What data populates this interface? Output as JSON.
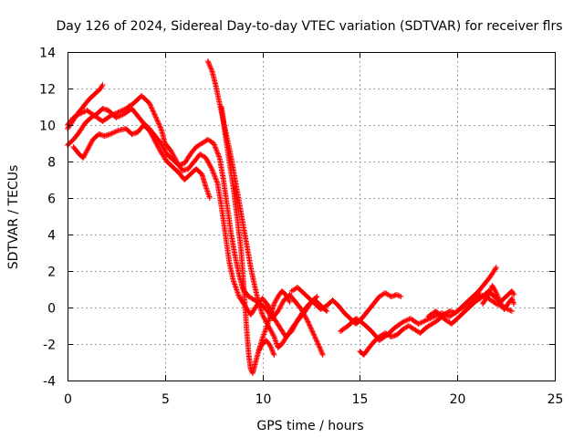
{
  "chart_data": {
    "type": "scatter",
    "title": "Day 126 of 2024, Sidereal Day-to-day VTEC variation (SDTVAR) for receiver flrs",
    "xlabel": "GPS time / hours",
    "ylabel": "SDTVAR / TECUs",
    "xlim": [
      0,
      25
    ],
    "ylim": [
      -4,
      14
    ],
    "xticks": [
      0,
      5,
      10,
      15,
      20,
      25
    ],
    "yticks": [
      -4,
      -2,
      0,
      2,
      4,
      6,
      8,
      10,
      12,
      14
    ],
    "grid": true,
    "legend": "none",
    "marker_color": "#ff0000",
    "marker": "plus",
    "series": [
      {
        "values": [
          [
            0,
            10.0
          ],
          [
            0.3,
            10.4
          ],
          [
            0.6,
            10.6
          ],
          [
            1.0,
            10.8
          ],
          [
            1.4,
            10.5
          ],
          [
            1.8,
            10.2
          ],
          [
            2.2,
            10.5
          ],
          [
            2.6,
            10.7
          ],
          [
            3.0,
            10.9
          ],
          [
            3.4,
            11.2
          ],
          [
            3.8,
            11.6
          ],
          [
            4.2,
            11.2
          ],
          [
            4.5,
            10.5
          ],
          [
            4.8,
            9.8
          ],
          [
            5.0,
            9.0
          ],
          [
            5.3,
            8.6
          ],
          [
            5.6,
            8.0
          ],
          [
            5.9,
            7.5
          ],
          [
            6.2,
            7.6
          ],
          [
            6.5,
            8.0
          ],
          [
            6.8,
            8.4
          ],
          [
            7.1,
            8.2
          ],
          [
            7.4,
            7.6
          ],
          [
            7.7,
            6.8
          ],
          [
            7.9,
            5.5
          ],
          [
            8.1,
            4.0
          ],
          [
            8.3,
            2.5
          ],
          [
            8.5,
            1.5
          ],
          [
            8.8,
            0.6
          ],
          [
            9.1,
            0.1
          ],
          [
            9.4,
            -0.4
          ],
          [
            9.7,
            0.1
          ],
          [
            10.0,
            0.5
          ],
          [
            10.3,
            0.1
          ],
          [
            10.6,
            -0.6
          ],
          [
            10.9,
            -1.1
          ],
          [
            11.2,
            -1.6
          ],
          [
            11.5,
            -1.3
          ],
          [
            11.8,
            -0.7
          ],
          [
            12.1,
            -0.2
          ],
          [
            12.4,
            0.2
          ],
          [
            12.7,
            0.4
          ],
          [
            13.0,
            0.1
          ],
          [
            13.3,
            -0.2
          ]
        ]
      },
      {
        "values": [
          [
            0,
            8.9
          ],
          [
            0.3,
            9.2
          ],
          [
            0.6,
            9.6
          ],
          [
            0.9,
            10.1
          ],
          [
            1.2,
            10.4
          ],
          [
            1.5,
            10.6
          ],
          [
            1.8,
            10.9
          ],
          [
            2.1,
            10.8
          ],
          [
            2.5,
            10.4
          ],
          [
            2.9,
            10.6
          ],
          [
            3.3,
            10.9
          ],
          [
            3.6,
            10.5
          ],
          [
            3.9,
            10.1
          ],
          [
            4.2,
            9.8
          ],
          [
            4.5,
            9.4
          ],
          [
            4.8,
            9.0
          ],
          [
            5.1,
            8.4
          ],
          [
            5.4,
            8.1
          ],
          [
            5.7,
            7.8
          ],
          [
            6.0,
            7.9
          ],
          [
            6.3,
            8.4
          ],
          [
            6.6,
            8.8
          ],
          [
            6.9,
            9.0
          ],
          [
            7.2,
            9.2
          ],
          [
            7.5,
            9.0
          ],
          [
            7.8,
            8.2
          ],
          [
            8.0,
            7.0
          ],
          [
            8.2,
            5.5
          ],
          [
            8.4,
            4.0
          ],
          [
            8.6,
            2.8
          ],
          [
            8.8,
            1.8
          ],
          [
            9.0,
            1.0
          ],
          [
            9.3,
            0.6
          ],
          [
            9.6,
            0.4
          ],
          [
            9.9,
            0.2
          ],
          [
            10.2,
            -0.1
          ],
          [
            10.5,
            -0.6
          ],
          [
            10.8,
            -0.2
          ],
          [
            11.1,
            0.4
          ],
          [
            11.4,
            0.7
          ],
          [
            11.7,
            0.3
          ],
          [
            12.0,
            -0.1
          ],
          [
            12.3,
            -0.7
          ],
          [
            12.6,
            -1.4
          ],
          [
            12.9,
            -2.1
          ],
          [
            13.1,
            -2.6
          ]
        ]
      },
      {
        "values": [
          [
            0,
            9.8
          ],
          [
            0.2,
            10.1
          ],
          [
            0.5,
            10.6
          ],
          [
            0.8,
            11.0
          ],
          [
            1.1,
            11.4
          ],
          [
            1.4,
            11.7
          ],
          [
            1.7,
            12.0
          ],
          [
            1.8,
            12.2
          ]
        ]
      },
      {
        "values": [
          [
            0.3,
            8.8
          ],
          [
            0.6,
            8.4
          ],
          [
            0.8,
            8.2
          ],
          [
            1.0,
            8.6
          ],
          [
            1.3,
            9.2
          ],
          [
            1.6,
            9.5
          ],
          [
            1.9,
            9.4
          ],
          [
            2.2,
            9.5
          ],
          [
            2.6,
            9.7
          ],
          [
            3.0,
            9.8
          ],
          [
            3.3,
            9.5
          ],
          [
            3.6,
            9.6
          ],
          [
            3.9,
            10.0
          ],
          [
            4.2,
            9.7
          ],
          [
            4.5,
            9.1
          ],
          [
            4.8,
            8.5
          ],
          [
            5.1,
            8.0
          ],
          [
            5.4,
            7.7
          ],
          [
            5.7,
            7.4
          ],
          [
            6.0,
            7.0
          ],
          [
            6.3,
            7.3
          ],
          [
            6.6,
            7.6
          ],
          [
            6.9,
            7.3
          ],
          [
            7.1,
            6.6
          ],
          [
            7.3,
            6.0
          ]
        ]
      },
      {
        "values": [
          [
            7.2,
            13.5
          ],
          [
            7.4,
            13.0
          ],
          [
            7.6,
            12.2
          ],
          [
            7.8,
            11.2
          ],
          [
            8.0,
            10.2
          ],
          [
            8.2,
            9.2
          ],
          [
            8.4,
            8.2
          ],
          [
            8.6,
            7.0
          ],
          [
            8.8,
            5.8
          ],
          [
            9.0,
            4.6
          ],
          [
            9.2,
            3.4
          ],
          [
            9.4,
            2.2
          ],
          [
            9.6,
            1.2
          ],
          [
            9.8,
            0.3
          ],
          [
            10.0,
            -0.4
          ],
          [
            10.3,
            -1.0
          ],
          [
            10.6,
            -1.6
          ],
          [
            10.8,
            -2.2
          ],
          [
            11.0,
            -2.0
          ],
          [
            11.3,
            -1.5
          ],
          [
            11.6,
            -1.0
          ],
          [
            11.9,
            -0.6
          ],
          [
            12.2,
            -0.2
          ],
          [
            12.5,
            0.3
          ],
          [
            12.8,
            0.6
          ]
        ]
      },
      {
        "values": [
          [
            7.9,
            11.0
          ],
          [
            8.1,
            9.4
          ],
          [
            8.3,
            8.0
          ],
          [
            8.5,
            6.6
          ],
          [
            8.7,
            5.0
          ],
          [
            8.9,
            3.2
          ],
          [
            9.0,
            1.8
          ],
          [
            9.1,
            0.2
          ],
          [
            9.2,
            -1.3
          ],
          [
            9.3,
            -2.6
          ],
          [
            9.4,
            -3.4
          ],
          [
            9.5,
            -3.6
          ],
          [
            9.6,
            -3.2
          ],
          [
            9.8,
            -2.4
          ],
          [
            10.0,
            -1.7
          ],
          [
            10.2,
            -1.1
          ],
          [
            10.4,
            -0.5
          ],
          [
            10.6,
            0.2
          ],
          [
            10.8,
            0.6
          ],
          [
            11.0,
            0.9
          ],
          [
            11.2,
            0.7
          ],
          [
            11.4,
            0.3
          ]
        ]
      },
      {
        "values": [
          [
            9.8,
            -2.4
          ],
          [
            10.0,
            -2.0
          ],
          [
            10.2,
            -1.8
          ],
          [
            10.4,
            -2.1
          ],
          [
            10.6,
            -2.6
          ]
        ]
      },
      {
        "values": [
          [
            11.5,
            0.9
          ],
          [
            11.8,
            1.1
          ],
          [
            12.1,
            0.8
          ],
          [
            12.4,
            0.5
          ],
          [
            12.7,
            0.2
          ],
          [
            13.0,
            -0.1
          ],
          [
            13.3,
            0.1
          ],
          [
            13.6,
            0.4
          ],
          [
            13.9,
            0.1
          ],
          [
            14.2,
            -0.3
          ],
          [
            14.5,
            -0.6
          ],
          [
            14.8,
            -0.9
          ],
          [
            15.1,
            -0.6
          ],
          [
            15.4,
            -0.2
          ],
          [
            15.7,
            0.2
          ],
          [
            16.0,
            0.6
          ],
          [
            16.3,
            0.8
          ],
          [
            16.6,
            0.6
          ],
          [
            16.9,
            0.7
          ],
          [
            17.1,
            0.6
          ]
        ]
      },
      {
        "values": [
          [
            15.0,
            -2.4
          ],
          [
            15.2,
            -2.6
          ],
          [
            15.4,
            -2.3
          ],
          [
            15.7,
            -1.9
          ],
          [
            16.0,
            -1.6
          ],
          [
            16.3,
            -1.4
          ],
          [
            16.6,
            -1.6
          ],
          [
            16.9,
            -1.5
          ],
          [
            17.2,
            -1.2
          ],
          [
            17.5,
            -1.0
          ],
          [
            17.8,
            -1.2
          ],
          [
            18.1,
            -1.4
          ],
          [
            18.4,
            -1.1
          ],
          [
            18.7,
            -0.9
          ],
          [
            19.0,
            -0.7
          ],
          [
            19.3,
            -0.4
          ],
          [
            19.6,
            -0.2
          ],
          [
            19.9,
            -0.3
          ],
          [
            20.2,
            0.0
          ],
          [
            20.5,
            0.3
          ],
          [
            20.8,
            0.6
          ],
          [
            21.1,
            0.9
          ],
          [
            21.4,
            1.3
          ],
          [
            21.7,
            1.7
          ],
          [
            22.0,
            2.2
          ]
        ]
      },
      {
        "values": [
          [
            14.0,
            -1.3
          ],
          [
            14.4,
            -1.0
          ],
          [
            14.8,
            -0.6
          ],
          [
            15.2,
            -0.9
          ],
          [
            15.6,
            -1.3
          ],
          [
            16.0,
            -1.8
          ],
          [
            16.4,
            -1.5
          ],
          [
            16.8,
            -1.1
          ],
          [
            17.2,
            -0.8
          ],
          [
            17.6,
            -0.6
          ],
          [
            18.0,
            -0.9
          ],
          [
            18.4,
            -0.7
          ],
          [
            18.8,
            -0.5
          ],
          [
            19.2,
            -0.3
          ],
          [
            19.6,
            -0.5
          ],
          [
            20.0,
            -0.2
          ],
          [
            20.4,
            0.1
          ],
          [
            20.8,
            0.4
          ],
          [
            21.2,
            0.7
          ],
          [
            21.6,
            0.5
          ],
          [
            22.0,
            0.2
          ],
          [
            22.4,
            0.0
          ],
          [
            22.8,
            -0.2
          ]
        ]
      },
      {
        "values": [
          [
            18.5,
            -0.5
          ],
          [
            18.9,
            -0.2
          ],
          [
            19.3,
            -0.6
          ],
          [
            19.7,
            -0.9
          ],
          [
            20.1,
            -0.5
          ],
          [
            20.5,
            -0.1
          ],
          [
            20.9,
            0.3
          ],
          [
            21.3,
            0.6
          ],
          [
            21.6,
            0.9
          ],
          [
            21.9,
            0.6
          ],
          [
            22.2,
            0.3
          ],
          [
            22.5,
            0.6
          ],
          [
            22.8,
            0.9
          ],
          [
            22.9,
            0.7
          ]
        ]
      },
      {
        "values": [
          [
            21.3,
            0.2
          ],
          [
            21.6,
            0.7
          ],
          [
            21.8,
            1.2
          ],
          [
            22.0,
            0.8
          ],
          [
            22.2,
            0.3
          ],
          [
            22.4,
            -0.1
          ],
          [
            22.6,
            0.2
          ],
          [
            22.8,
            0.5
          ],
          [
            22.9,
            0.2
          ]
        ]
      }
    ]
  }
}
